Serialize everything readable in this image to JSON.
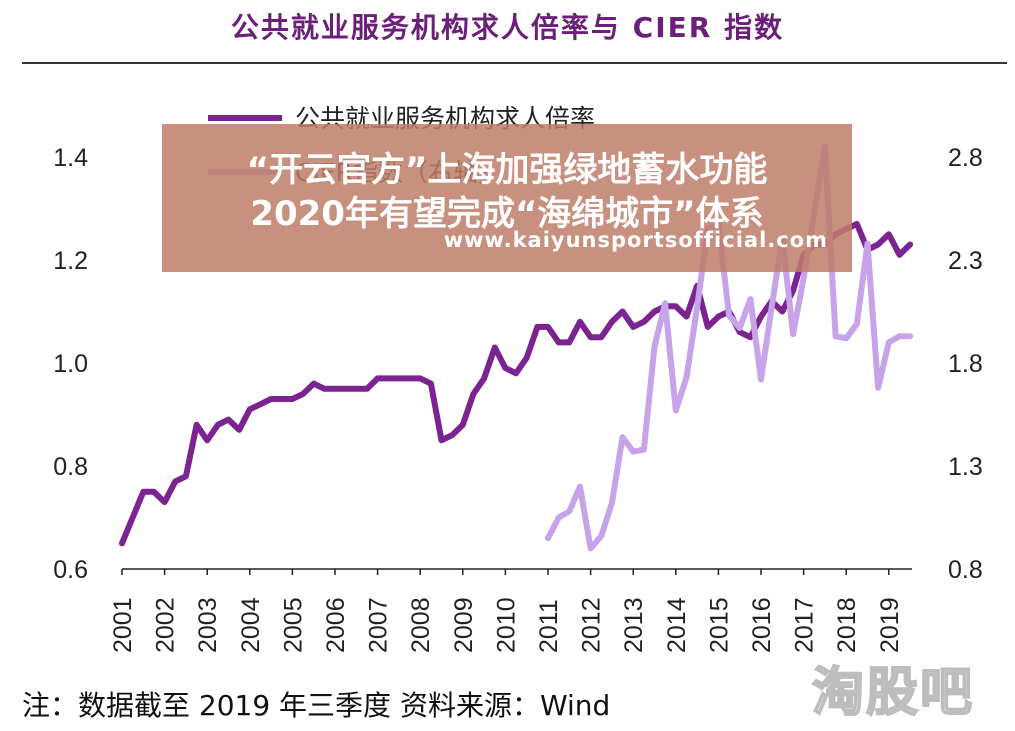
{
  "header": {
    "title": "公共就业服务机构求人倍率与 CIER 指数"
  },
  "footer": {
    "note": "注：数据截至 2019 年三季度 资料来源：Wind"
  },
  "overlay": {
    "line1": "“开云官方”上海加强绿地蓄水功能",
    "line2": "2020年有望完成“海绵城市”体系",
    "url": "www.kaiyunsportsofficial.com"
  },
  "watermark": "淘股吧",
  "colors": {
    "series1": "#7b2390",
    "series2": "#c7a3ea",
    "title": "#6b1f78"
  },
  "chart_data": {
    "type": "line",
    "title": "公共就业服务机构求人倍率与 CIER 指数",
    "legend": [
      "公共就业服务机构求人倍率",
      "CIER指数（右轴）"
    ],
    "legend_position": "top-left",
    "x_ticks": [
      "2001",
      "2002",
      "2003",
      "2004",
      "2005",
      "2006",
      "2007",
      "2008",
      "2009",
      "2010",
      "2011",
      "2012",
      "2013",
      "2014",
      "2015",
      "2016",
      "2017",
      "2018",
      "2019"
    ],
    "y_left": {
      "ticks": [
        "0.6",
        "0.8",
        "1.0",
        "1.2",
        "1.4"
      ],
      "range": [
        0.6,
        1.4
      ]
    },
    "y_right": {
      "ticks": [
        "0.8",
        "1.3",
        "1.8",
        "2.3",
        "2.8"
      ],
      "range": [
        0.8,
        2.8
      ]
    },
    "series": [
      {
        "name": "公共就业服务机构求人倍率",
        "axis": "left",
        "x": [
          2001.0,
          2001.25,
          2001.5,
          2001.75,
          2002.0,
          2002.25,
          2002.5,
          2002.75,
          2003.0,
          2003.25,
          2003.5,
          2003.75,
          2004.0,
          2004.25,
          2004.5,
          2004.75,
          2005.0,
          2005.25,
          2005.5,
          2005.75,
          2006.0,
          2006.25,
          2006.5,
          2006.75,
          2007.0,
          2007.25,
          2007.5,
          2007.75,
          2008.0,
          2008.25,
          2008.5,
          2008.75,
          2009.0,
          2009.25,
          2009.5,
          2009.75,
          2010.0,
          2010.25,
          2010.5,
          2010.75,
          2011.0,
          2011.25,
          2011.5,
          2011.75,
          2012.0,
          2012.25,
          2012.5,
          2012.75,
          2013.0,
          2013.25,
          2013.5,
          2013.75,
          2014.0,
          2014.25,
          2014.5,
          2014.75,
          2015.0,
          2015.25,
          2015.5,
          2015.75,
          2016.0,
          2016.25,
          2016.5,
          2016.75,
          2017.0,
          2017.25,
          2017.5,
          2017.75,
          2018.0,
          2018.25,
          2018.5,
          2018.75,
          2019.0,
          2019.25,
          2019.5
        ],
        "values": [
          0.65,
          0.7,
          0.75,
          0.75,
          0.73,
          0.77,
          0.78,
          0.88,
          0.85,
          0.88,
          0.89,
          0.87,
          0.91,
          0.92,
          0.93,
          0.93,
          0.93,
          0.94,
          0.96,
          0.95,
          0.95,
          0.95,
          0.95,
          0.95,
          0.97,
          0.97,
          0.97,
          0.97,
          0.97,
          0.96,
          0.85,
          0.86,
          0.88,
          0.94,
          0.97,
          1.03,
          0.99,
          0.98,
          1.01,
          1.07,
          1.07,
          1.04,
          1.04,
          1.08,
          1.05,
          1.05,
          1.08,
          1.1,
          1.07,
          1.08,
          1.1,
          1.11,
          1.11,
          1.09,
          1.15,
          1.07,
          1.09,
          1.1,
          1.06,
          1.05,
          1.09,
          1.12,
          1.1,
          1.14,
          1.21,
          1.23,
          1.23,
          1.25,
          1.26,
          1.27,
          1.22,
          1.23,
          1.25,
          1.21,
          1.23
        ]
      },
      {
        "name": "CIER指数（右轴）",
        "axis": "right",
        "x": [
          2011.0,
          2011.25,
          2011.5,
          2011.75,
          2012.0,
          2012.25,
          2012.5,
          2012.75,
          2013.0,
          2013.25,
          2013.5,
          2013.75,
          2014.0,
          2014.25,
          2014.5,
          2014.75,
          2015.0,
          2015.25,
          2015.5,
          2015.75,
          2016.0,
          2016.25,
          2016.5,
          2016.75,
          2017.0,
          2017.25,
          2017.5,
          2017.75,
          2018.0,
          2018.25,
          2018.5,
          2018.75,
          2019.0,
          2019.25,
          2019.5
        ],
        "values": [
          0.95,
          1.05,
          1.08,
          1.2,
          0.9,
          0.96,
          1.12,
          1.44,
          1.37,
          1.38,
          1.88,
          2.09,
          1.57,
          1.73,
          2.07,
          2.45,
          2.47,
          2.03,
          1.97,
          2.11,
          1.72,
          2.07,
          2.41,
          1.94,
          2.21,
          2.53,
          2.85,
          1.93,
          1.92,
          1.99,
          2.38,
          1.68,
          1.9,
          1.93,
          1.93
        ]
      }
    ]
  }
}
